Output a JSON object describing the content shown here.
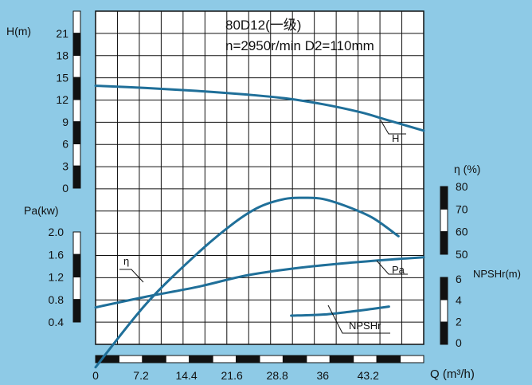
{
  "colors": {
    "background": "#8ecae6",
    "curve": "#1f6f99",
    "grid": "#111111",
    "plot_bg": "#ffffff"
  },
  "chart_data": {
    "type": "line",
    "title_line1": "80D12(一级)",
    "title_line2": "n=2950r/min  D2=110mm",
    "xlabel": "Q (m³/h)",
    "xticks": [
      {
        "value": 0,
        "label": "0"
      },
      {
        "value": 7.2,
        "label": "7.2"
      },
      {
        "value": 14.4,
        "label": "14.4"
      },
      {
        "value": 21.6,
        "label": "21.6"
      },
      {
        "value": 28.8,
        "label": "28.8"
      },
      {
        "value": 36,
        "label": "36"
      },
      {
        "value": 43.2,
        "label": "43.2"
      }
    ],
    "xlim": [
      0,
      52
    ],
    "axes": {
      "H": {
        "label": "H(m)",
        "ticks": [
          0,
          3,
          6,
          9,
          12,
          15,
          18,
          21
        ],
        "ylim": [
          0,
          21
        ]
      },
      "Pa": {
        "label": "Pa(kw)",
        "ticks": [
          "0.4",
          "0.8",
          "1.2",
          "1.6",
          "2.0"
        ],
        "ylim": [
          0.4,
          2.0
        ]
      },
      "eta": {
        "label": "η (%)",
        "ticks": [
          50,
          60,
          70,
          80
        ],
        "ylim": [
          50,
          80
        ]
      },
      "npshr": {
        "label": "NPSHr(m)",
        "ticks": [
          0,
          2,
          4,
          6
        ],
        "ylim": [
          0,
          6
        ]
      }
    },
    "series": [
      {
        "name": "H",
        "axis": "H",
        "x": [
          0,
          8,
          16,
          24,
          30,
          36,
          42,
          46,
          52
        ],
        "y": [
          13.9,
          13.6,
          13.2,
          12.7,
          12.2,
          11.4,
          10.3,
          9.3,
          7.8
        ]
      },
      {
        "name": "η",
        "axis": "eta",
        "x": [
          0,
          8,
          16,
          22,
          26,
          30,
          33,
          36,
          40,
          44,
          48
        ],
        "y": [
          0,
          28,
          50,
          64,
          71,
          74.5,
          75,
          74.5,
          71,
          66,
          58
        ]
      },
      {
        "name": "Pa",
        "axis": "Pa",
        "x": [
          0,
          8,
          16,
          24,
          32,
          40,
          48,
          52
        ],
        "y": [
          0.66,
          0.85,
          1.02,
          1.23,
          1.36,
          1.45,
          1.52,
          1.55
        ]
      },
      {
        "name": "NPSHr",
        "axis": "npshr",
        "x": [
          31,
          36,
          40,
          44,
          46.5
        ],
        "y": [
          2.55,
          2.65,
          2.9,
          3.2,
          3.4
        ]
      }
    ],
    "curve_labels": {
      "H": "H",
      "eta": "η",
      "Pa": "Pa",
      "npshr": "NPSHr"
    }
  }
}
